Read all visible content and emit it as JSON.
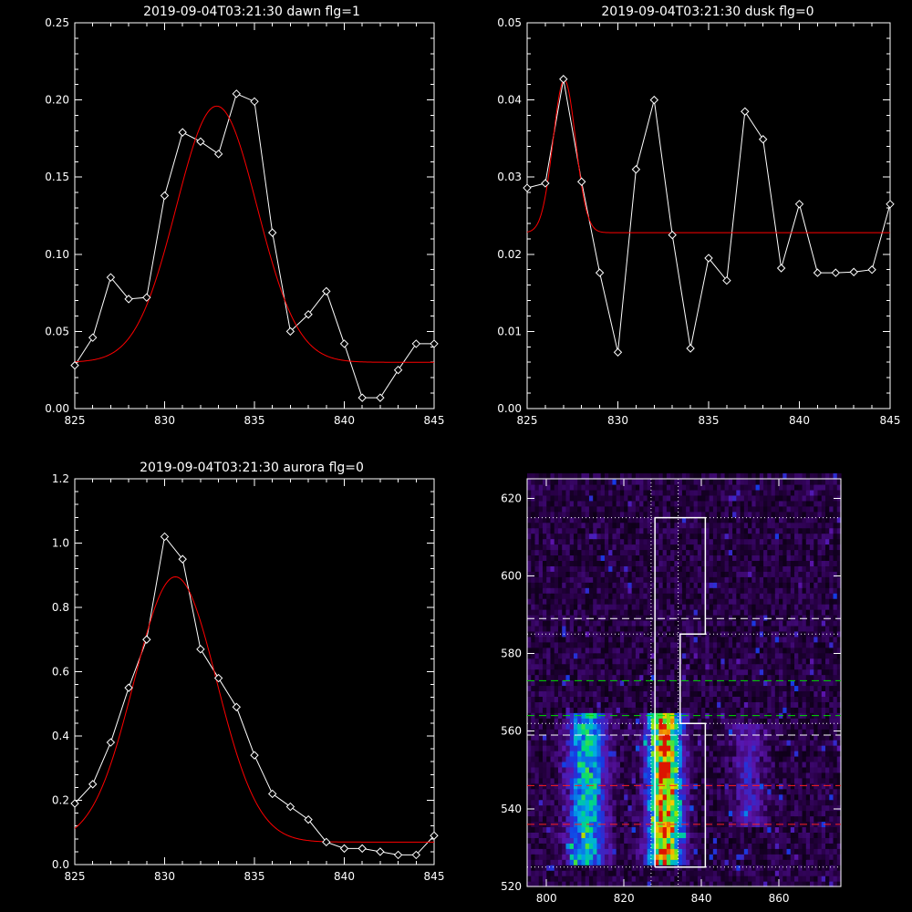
{
  "chart_data": [
    {
      "type": "line",
      "title": "2019-09-04T03:21:30 dawn flg=1",
      "xlim": [
        825,
        845
      ],
      "ylim": [
        0,
        0.25
      ],
      "xticks": [
        825,
        830,
        835,
        840,
        845
      ],
      "yticks": [
        0.0,
        0.05,
        0.1,
        0.15,
        0.2,
        0.25
      ],
      "ytick_labels": [
        "0.00",
        "0.05",
        "0.10",
        "0.15",
        "0.20",
        "0.25"
      ],
      "colors": {
        "data": "#ffffff",
        "fit": "#ff0000"
      },
      "series": [
        {
          "kind": "data",
          "marker": "diamond",
          "x": [
            825,
            826,
            827,
            828,
            829,
            830,
            831,
            832,
            833,
            834,
            835,
            836,
            837,
            838,
            839,
            840,
            841,
            842,
            843,
            844,
            845
          ],
          "y": [
            0.028,
            0.046,
            0.085,
            0.071,
            0.072,
            0.138,
            0.179,
            0.173,
            0.165,
            0.204,
            0.199,
            0.114,
            0.05,
            0.061,
            0.076,
            0.042,
            0.007,
            0.007,
            0.025,
            0.042,
            0.042
          ]
        },
        {
          "kind": "fit",
          "model": "gaussian",
          "amplitude": 0.166,
          "center": 832.9,
          "sigma": 2.25,
          "baseline": 0.03
        }
      ]
    },
    {
      "type": "line",
      "title": "2019-09-04T03:21:30 dusk flg=0",
      "xlim": [
        825,
        845
      ],
      "ylim": [
        0,
        0.05
      ],
      "xticks": [
        825,
        830,
        835,
        840,
        845
      ],
      "yticks": [
        0.0,
        0.01,
        0.02,
        0.03,
        0.04,
        0.05
      ],
      "ytick_labels": [
        "0.00",
        "0.01",
        "0.02",
        "0.03",
        "0.04",
        "0.05"
      ],
      "colors": {
        "data": "#ffffff",
        "fit": "#ff0000"
      },
      "series": [
        {
          "kind": "data",
          "marker": "diamond",
          "x": [
            825,
            826,
            827,
            828,
            829,
            830,
            831,
            832,
            833,
            834,
            835,
            836,
            837,
            838,
            839,
            840,
            841,
            842,
            843,
            844,
            845
          ],
          "y": [
            0.0286,
            0.0292,
            0.0427,
            0.0294,
            0.0176,
            0.0073,
            0.031,
            0.04,
            0.0225,
            0.0078,
            0.0195,
            0.0166,
            0.0385,
            0.0349,
            0.0182,
            0.0265,
            0.0176,
            0.0176,
            0.0177,
            0.018,
            0.0265
          ]
        },
        {
          "kind": "fit",
          "model": "gaussian",
          "amplitude": 0.0198,
          "center": 827.05,
          "sigma": 0.62,
          "baseline": 0.0228
        }
      ]
    },
    {
      "type": "line",
      "title": "2019-09-04T03:21:30 aurora flg=0",
      "xlim": [
        825,
        845
      ],
      "ylim": [
        0,
        1.2
      ],
      "xticks": [
        825,
        830,
        835,
        840,
        845
      ],
      "yticks": [
        0.0,
        0.2,
        0.4,
        0.6,
        0.8,
        1.0,
        1.2
      ],
      "ytick_labels": [
        "0.0",
        "0.2",
        "0.4",
        "0.6",
        "0.8",
        "1.0",
        "1.2"
      ],
      "colors": {
        "data": "#ffffff",
        "fit": "#ff0000"
      },
      "series": [
        {
          "kind": "data",
          "marker": "diamond",
          "x": [
            825,
            826,
            827,
            828,
            829,
            830,
            831,
            832,
            833,
            834,
            835,
            836,
            837,
            838,
            839,
            840,
            841,
            842,
            843,
            844,
            845
          ],
          "y": [
            0.19,
            0.25,
            0.38,
            0.55,
            0.7,
            1.02,
            0.95,
            0.67,
            0.58,
            0.49,
            0.34,
            0.22,
            0.18,
            0.14,
            0.07,
            0.05,
            0.05,
            0.04,
            0.03,
            0.03,
            0.09
          ]
        },
        {
          "kind": "fit",
          "model": "gaussian",
          "amplitude": 0.825,
          "center": 830.6,
          "sigma": 2.3,
          "baseline": 0.07
        }
      ]
    },
    {
      "type": "heatmap",
      "xlim": [
        795,
        876
      ],
      "ylim": [
        520,
        625
      ],
      "xticks": [
        800,
        820,
        840,
        860
      ],
      "yticks": [
        520,
        540,
        560,
        580,
        600,
        620
      ],
      "colormap": "rainbow-on-black",
      "bands": [
        {
          "x_center": 810,
          "x_width": 8,
          "y_range": [
            525,
            563
          ],
          "peak": 0.55
        },
        {
          "x_center": 830,
          "x_width": 7,
          "y_range": [
            525,
            563
          ],
          "peak": 1.0
        },
        {
          "x_center": 852,
          "x_width": 7,
          "y_range": [
            535,
            560
          ],
          "peak": 0.2
        }
      ],
      "overlays": {
        "box_outline": [
          [
            828,
            525
          ],
          [
            841,
            525
          ],
          [
            841,
            562
          ],
          [
            834.5,
            562
          ],
          [
            834.5,
            585
          ],
          [
            841,
            585
          ],
          [
            841,
            615
          ],
          [
            828,
            615
          ],
          [
            828,
            525
          ]
        ],
        "vertical_dotted_x": [
          827,
          834
        ],
        "white_dotted_y": [
          525,
          562,
          585,
          615
        ],
        "white_dashed_y": [
          559,
          589
        ],
        "green_dashed_y": [
          564,
          573
        ],
        "red_dashed_y": [
          536,
          546
        ]
      }
    }
  ]
}
